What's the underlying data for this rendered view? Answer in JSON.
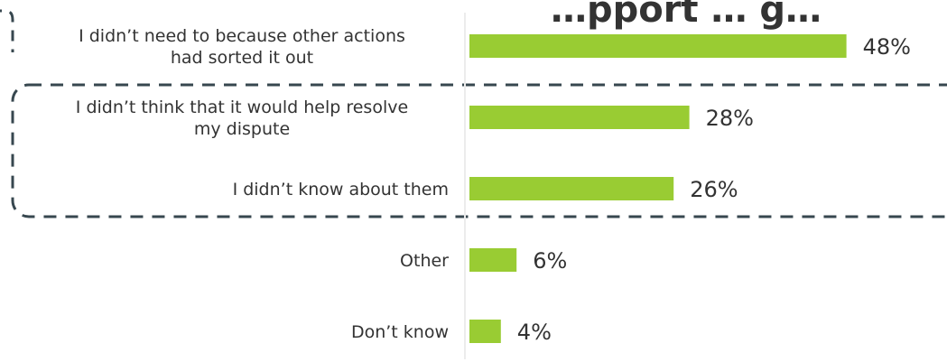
{
  "chart_data": {
    "type": "bar",
    "orientation": "horizontal",
    "title": "…pport … g…",
    "categories": [
      [
        "I didn’t need to because other actions",
        "had sorted it out"
      ],
      [
        "I didn’t think that it would help resolve",
        "my dispute"
      ],
      [
        "I didn’t know about them"
      ],
      [
        "Other"
      ],
      [
        "Don’t know"
      ]
    ],
    "values": [
      48,
      28,
      26,
      6,
      4
    ],
    "value_labels": [
      "48%",
      "28%",
      "26%",
      "6%",
      "4%"
    ],
    "unit": "%",
    "xlim": [
      0,
      100
    ],
    "grid": false,
    "legend": "none",
    "highlight": {
      "type": "dashed-rounded-box",
      "categories": [
        1,
        2
      ]
    },
    "colors": {
      "bar": "#99cc33",
      "text": "#333333",
      "highlight": "#37474f",
      "axis": "#ececec"
    }
  }
}
